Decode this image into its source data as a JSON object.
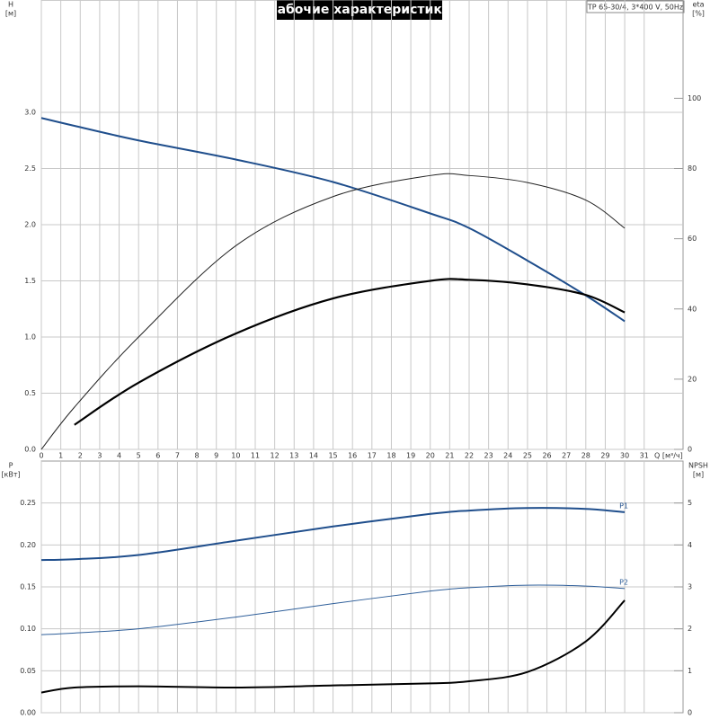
{
  "chart_data": [
    {
      "type": "line",
      "title": "Рабочие характеристики",
      "subtitle": "TP 65-30/4, 3*400 V, 50Hz",
      "y_label": "H",
      "y_unit": "[м]",
      "y2_label": "eta",
      "y2_unit": "[%]",
      "x_label": "Q [м³/ч]",
      "x": [
        0,
        1.7,
        5,
        10,
        15,
        20,
        22,
        25,
        28,
        30
      ],
      "series": [
        {
          "color": "#1f4e8c",
          "width": 2,
          "values": [
            2.95,
            2.88,
            2.75,
            2.58,
            2.38,
            2.1,
            1.97,
            1.68,
            1.37,
            1.14
          ]
        },
        {
          "color": "#222222",
          "width": 1,
          "axis": "y2",
          "values": [
            0,
            12,
            32,
            58,
            72,
            78,
            78,
            76,
            71,
            63
          ]
        },
        {
          "color": "#000000",
          "width": 2.2,
          "axis": "y2",
          "values": [
            null,
            7,
            19,
            33,
            43,
            48,
            48.3,
            47,
            44,
            39
          ]
        }
      ],
      "xlim": [
        0,
        33
      ],
      "xticks": [
        0,
        1,
        2,
        3,
        4,
        5,
        6,
        7,
        8,
        9,
        10,
        11,
        12,
        13,
        14,
        15,
        16,
        17,
        18,
        19,
        20,
        21,
        22,
        23,
        24,
        25,
        26,
        27,
        28,
        29,
        30,
        31
      ],
      "ylim": [
        0,
        4
      ],
      "yticks": [
        {
          "value": 0,
          "label": "0.0"
        },
        0.5,
        {
          "value": 1,
          "label": "1.0"
        },
        1.5,
        {
          "value": 2,
          "label": "2.0"
        },
        2.5,
        {
          "value": 3,
          "label": "3.0"
        }
      ],
      "y2lim": [
        0,
        128
      ],
      "y2ticks": [
        0,
        20,
        40,
        60,
        80,
        100
      ],
      "grid": true
    },
    {
      "type": "line",
      "y_label": "P",
      "y_unit": "[кВт]",
      "y2_label": "NPSH",
      "y2_unit": "[м]",
      "x": [
        0,
        1.7,
        5,
        10,
        15,
        20,
        22,
        25,
        28,
        30
      ],
      "series": [
        {
          "name": "P1",
          "color": "#1f4e8c",
          "width": 2,
          "values": [
            0.182,
            0.183,
            0.188,
            0.205,
            0.222,
            0.237,
            0.241,
            0.244,
            0.243,
            0.239
          ]
        },
        {
          "name": "P2",
          "color": "#2f5f9a",
          "width": 1,
          "values": [
            0.093,
            0.095,
            0.1,
            0.114,
            0.13,
            0.145,
            0.149,
            0.152,
            0.151,
            0.148
          ]
        },
        {
          "color": "#000000",
          "width": 2,
          "axis": "y2",
          "values": [
            0.48,
            0.6,
            0.63,
            0.6,
            0.65,
            0.7,
            0.75,
            0.97,
            1.7,
            2.68
          ]
        }
      ],
      "xlim": [
        0,
        33
      ],
      "ylim": [
        0,
        0.3
      ],
      "yticks": [
        {
          "value": 0,
          "label": "0.00"
        },
        0.05,
        {
          "value": 0.1,
          "label": "0.10"
        },
        0.15,
        {
          "value": 0.2,
          "label": "0.20"
        },
        0.25
      ],
      "y2lim": [
        0,
        6
      ],
      "y2ticks": [
        0,
        1,
        2,
        3,
        4,
        5
      ],
      "grid": true
    }
  ]
}
